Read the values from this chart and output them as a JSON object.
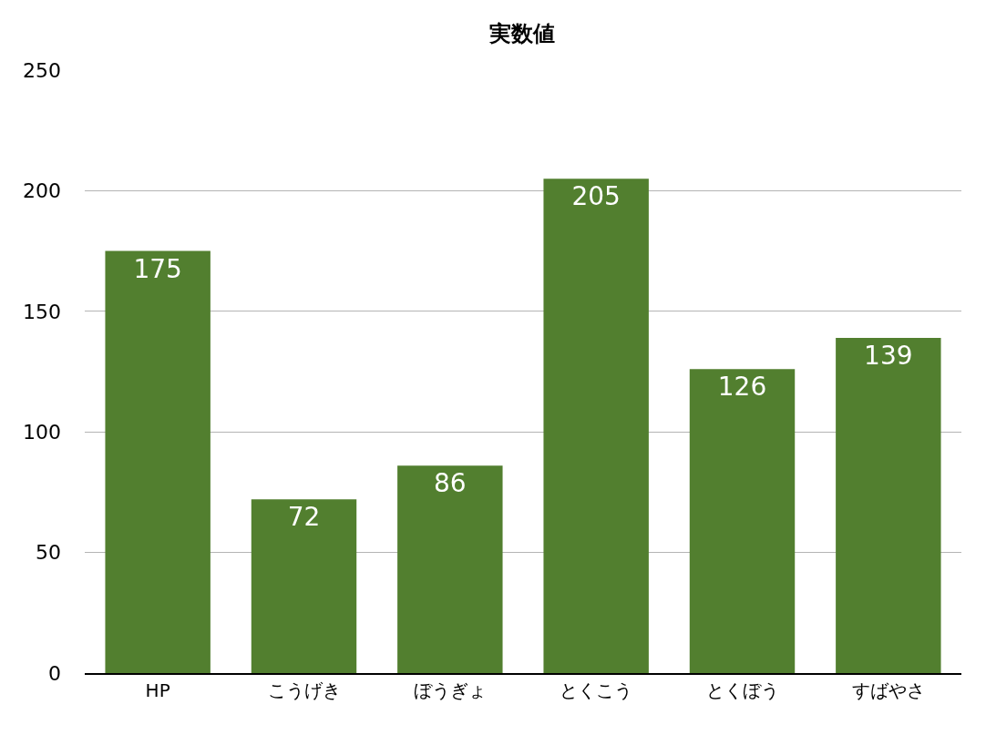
{
  "chart_data": {
    "type": "bar",
    "title": "実数値",
    "categories": [
      "HP",
      "こうげき",
      "ぼうぎょ",
      "とくこう",
      "とくぼう",
      "すばやさ"
    ],
    "values": [
      175,
      72,
      86,
      205,
      126,
      139
    ],
    "color": "#527f2f",
    "ylim": [
      0,
      250
    ],
    "yticks": [
      0,
      50,
      100,
      150,
      200,
      250
    ],
    "grid": "y",
    "data_labels": true,
    "legend": false
  }
}
